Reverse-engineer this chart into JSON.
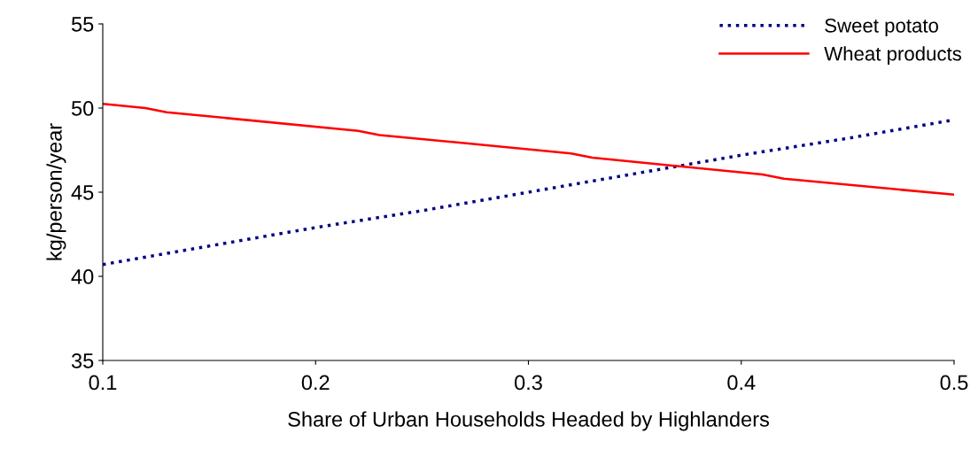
{
  "chart_data": {
    "type": "line",
    "xlabel": "Share of Urban Households Headed by Highlanders",
    "ylabel": "kg/person/year",
    "xlim": [
      0.1,
      0.5
    ],
    "ylim": [
      35,
      55
    ],
    "xticks": [
      0.1,
      0.2,
      0.3,
      0.4,
      0.5
    ],
    "yticks": [
      35,
      40,
      45,
      50,
      55
    ],
    "grid": false,
    "legend": "top right",
    "series": [
      {
        "name": "Sweet potato",
        "color": "#000080",
        "line_style": "dotted",
        "x": [
          0.1,
          0.15,
          0.2,
          0.25,
          0.3,
          0.35,
          0.4,
          0.45,
          0.5
        ],
        "values": [
          40.7,
          41.8,
          42.9,
          43.9,
          45.0,
          46.1,
          47.2,
          48.2,
          49.3
        ]
      },
      {
        "name": "Wheat products",
        "color": "#ff0000",
        "line_style": "solid",
        "x": [
          0.1,
          0.12,
          0.13,
          0.22,
          0.23,
          0.32,
          0.33,
          0.41,
          0.42,
          0.5
        ],
        "values": [
          50.25,
          50.0,
          49.75,
          48.65,
          48.4,
          47.3,
          47.05,
          46.05,
          45.8,
          44.85
        ]
      }
    ]
  }
}
